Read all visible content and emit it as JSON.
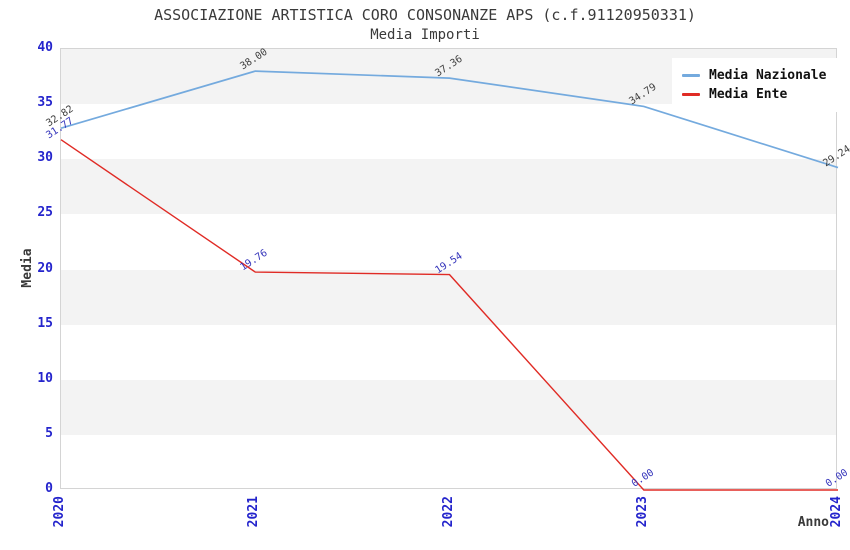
{
  "chart_data": {
    "type": "line",
    "title": "ASSOCIAZIONE ARTISTICA CORO CONSONANZE APS (c.f.91120950331)",
    "subtitle": "Media Importi",
    "xlabel": "Anno",
    "ylabel": "Media",
    "categories": [
      "2020",
      "2021",
      "2022",
      "2023",
      "2024"
    ],
    "yticks": [
      0,
      5,
      10,
      15,
      20,
      25,
      30,
      35,
      40
    ],
    "ylim": [
      0,
      40
    ],
    "grid": "alternating-horizontal-bands",
    "legend_position": "top-right",
    "series": [
      {
        "name": "Media Nazionale",
        "color": "#74aade",
        "label_color": "#3f3f3f",
        "values": [
          32.82,
          38.0,
          37.36,
          34.79,
          29.24
        ],
        "point_labels": [
          "32.82",
          "38.00",
          "37.36",
          "34.79",
          "29.24"
        ]
      },
      {
        "name": "Media Ente",
        "color": "#e02b25",
        "label_color": "#3434bb",
        "values": [
          31.77,
          19.76,
          19.54,
          0.0,
          0.0
        ],
        "point_labels": [
          "31.77",
          "19.76",
          "19.54",
          "0.00",
          "0.00"
        ]
      }
    ]
  },
  "colors": {
    "tick_label": "#2424cc",
    "band": "#f3f3f3",
    "plot_border": "#d4d4d4",
    "title_text": "#3a3a3a"
  }
}
